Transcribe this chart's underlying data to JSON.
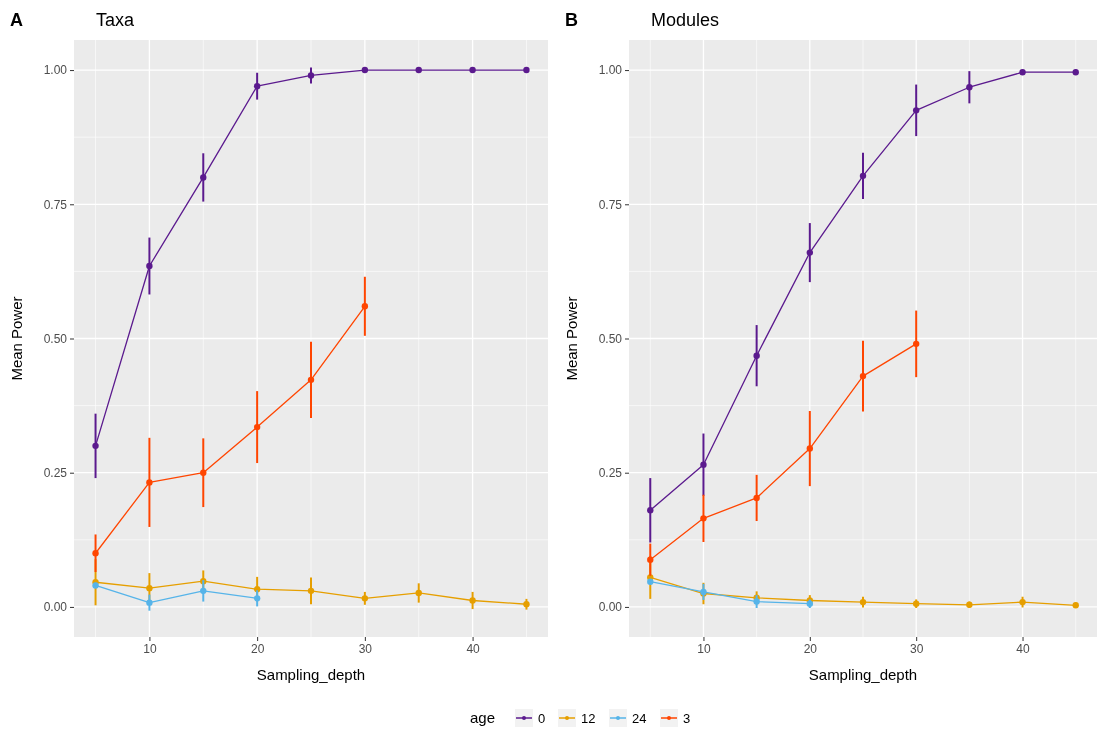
{
  "chart_data": [
    {
      "type": "line",
      "title": "Taxa",
      "annotations": [
        "A"
      ],
      "xlabel": "Sampling_depth",
      "ylabel": "Mean Power",
      "xlim": [
        3,
        47
      ],
      "ylim": [
        -0.056,
        1.056
      ],
      "xticks": [
        10,
        20,
        30,
        40
      ],
      "yticks": [
        {
          "value": 0,
          "label": "0.00"
        },
        {
          "value": 0.25,
          "label": "0.25"
        },
        {
          "value": 0.5,
          "label": "0.50"
        },
        {
          "value": 0.75,
          "label": "0.75"
        },
        {
          "value": 1,
          "label": "1.00"
        }
      ],
      "grid": true,
      "marker": "circle",
      "line_style": "solid",
      "legend": "bottom",
      "legend_title": "age",
      "series": [
        {
          "name": "0",
          "color": "#5b1a8e",
          "x": [
            5,
            10,
            15,
            20,
            25,
            30,
            35,
            40,
            45
          ],
          "values": [
            0.3,
            0.635,
            0.8,
            0.97,
            0.99,
            1.0,
            1.0,
            1.0,
            1.0
          ],
          "errors": [
            0.06,
            0.053,
            0.045,
            0.025,
            0.015,
            null,
            null,
            null,
            null
          ]
        },
        {
          "name": "12",
          "color": "#e69f00",
          "x": [
            5,
            10,
            15,
            20,
            25,
            30,
            35,
            40,
            45
          ],
          "values": [
            0.046,
            0.035,
            0.048,
            0.033,
            0.03,
            0.016,
            0.026,
            0.012,
            0.005
          ],
          "errors": [
            0.043,
            0.028,
            0.02,
            0.023,
            0.025,
            0.012,
            0.018,
            0.016,
            0.01
          ]
        },
        {
          "name": "24",
          "color": "#56b4e9",
          "x": [
            5,
            10,
            15,
            20
          ],
          "values": [
            0.04,
            0.008,
            0.03,
            0.016
          ],
          "errors": [
            0.005,
            0.015,
            0.02,
            0.015
          ]
        },
        {
          "name": "3",
          "color": "#ff4500",
          "x": [
            5,
            10,
            15,
            20,
            25,
            30
          ],
          "values": [
            0.1,
            0.232,
            0.25,
            0.335,
            0.423,
            0.56
          ],
          "errors": [
            0.035,
            0.083,
            0.064,
            0.067,
            0.071,
            0.055
          ]
        }
      ]
    },
    {
      "type": "line",
      "title": "Modules",
      "annotations": [
        "B"
      ],
      "xlabel": "Sampling_depth",
      "ylabel": "Mean Power",
      "xlim": [
        3,
        47
      ],
      "ylim": [
        -0.056,
        1.056
      ],
      "xticks": [
        10,
        20,
        30,
        40
      ],
      "yticks": [
        {
          "value": 0,
          "label": "0.00"
        },
        {
          "value": 0.25,
          "label": "0.25"
        },
        {
          "value": 0.5,
          "label": "0.50"
        },
        {
          "value": 0.75,
          "label": "0.75"
        },
        {
          "value": 1,
          "label": "1.00"
        }
      ],
      "grid": true,
      "marker": "circle",
      "line_style": "solid",
      "series": [
        {
          "color": "#5b1a8e",
          "x": [
            5,
            10,
            15,
            20,
            25,
            30,
            35,
            40,
            45
          ],
          "values": [
            0.18,
            0.265,
            0.468,
            0.66,
            0.803,
            0.925,
            0.968,
            0.996,
            0.996
          ],
          "errors": [
            0.06,
            0.058,
            0.057,
            0.055,
            0.043,
            0.048,
            0.03,
            0.005,
            0.005
          ]
        },
        {
          "color": "#e69f00",
          "x": [
            5,
            10,
            15,
            20,
            25,
            30,
            35,
            40,
            45
          ],
          "values": [
            0.055,
            0.025,
            0.017,
            0.012,
            0.009,
            0.006,
            0.004,
            0.009,
            0.003
          ],
          "errors": [
            0.04,
            0.02,
            0.012,
            0.01,
            0.01,
            0.008,
            0.006,
            0.01,
            0.005
          ]
        },
        {
          "color": "#56b4e9",
          "x": [
            5,
            10,
            15,
            20
          ],
          "values": [
            0.047,
            0.028,
            0.01,
            0.006
          ],
          "errors": [
            0.005,
            0.015,
            0.012,
            0.008
          ]
        },
        {
          "color": "#ff4500",
          "x": [
            5,
            10,
            15,
            20,
            25,
            30
          ],
          "values": [
            0.088,
            0.165,
            0.203,
            0.295,
            0.43,
            0.49
          ],
          "errors": [
            0.03,
            0.044,
            0.043,
            0.07,
            0.066,
            0.062
          ]
        }
      ]
    }
  ]
}
